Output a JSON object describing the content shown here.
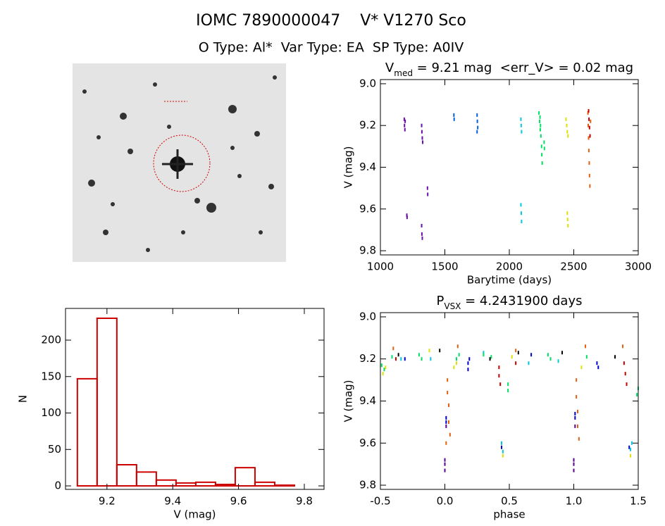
{
  "header": {
    "title": "IOMC 7890000047    V* V1270 Sco",
    "subtitle": "O Type: Al*  Var Type: EA  SP Type: A0IV"
  },
  "chart_data": [
    {
      "type": "scatter",
      "title": [
        "V",
        "med",
        " = 9.21 mag  <err_V> = 0.02 mag"
      ],
      "x_label": "Barytime (days)",
      "y_label": "V (mag)",
      "xlim": [
        1000,
        3000
      ],
      "xticks": [
        1000,
        1500,
        2000,
        2500,
        3000
      ],
      "ylim": [
        9.82,
        8.98
      ],
      "yticks": [
        {
          "value": 9,
          "label": "9.0"
        },
        9.2,
        9.4,
        9.6,
        9.8
      ],
      "series": [
        {
          "color": "#6a0dad",
          "x": [
            1185,
            1187,
            1190,
            1192,
            1205,
            1207,
            1320,
            1322,
            1325,
            1328,
            1320,
            1322,
            1325,
            1365,
            1367
          ],
          "values": [
            9.17,
            9.2,
            9.22,
            9.18,
            9.63,
            9.64,
            9.2,
            9.23,
            9.26,
            9.28,
            9.68,
            9.72,
            9.74,
            9.5,
            9.53
          ]
        },
        {
          "color": "#0060e0",
          "x": [
            1570,
            1572,
            1750,
            1752,
            1755,
            1750
          ],
          "values": [
            9.15,
            9.17,
            9.15,
            9.18,
            9.21,
            9.23
          ]
        },
        {
          "color": "#00c8e0",
          "x": [
            2090,
            2092,
            2095,
            2090,
            2093,
            2095
          ],
          "values": [
            9.17,
            9.2,
            9.23,
            9.58,
            9.62,
            9.66
          ]
        },
        {
          "color": "#00e060",
          "x": [
            2230,
            2235,
            2240,
            2245,
            2250,
            2252,
            2255,
            2270,
            2272,
            2238,
            2242
          ],
          "values": [
            9.14,
            9.18,
            9.22,
            9.25,
            9.3,
            9.34,
            9.38,
            9.28,
            9.31,
            9.16,
            9.2
          ]
        },
        {
          "color": "#e0e000",
          "x": [
            2440,
            2445,
            2450,
            2455,
            2450,
            2452,
            2455
          ],
          "values": [
            9.17,
            9.2,
            9.23,
            9.25,
            9.62,
            9.65,
            9.68
          ]
        },
        {
          "color": "#e06010",
          "x": [
            2610,
            2612,
            2615,
            2617,
            2620,
            2622,
            2625,
            2630
          ],
          "values": [
            9.14,
            9.2,
            9.26,
            9.32,
            9.38,
            9.44,
            9.49,
            9.18
          ]
        },
        {
          "color": "#c80000",
          "x": [
            2615,
            2618,
            2622,
            2626
          ],
          "values": [
            9.13,
            9.17,
            9.21,
            9.25
          ]
        }
      ]
    },
    {
      "type": "histogram",
      "x_label": "V (mag)",
      "y_label": "N",
      "color": "#cc0000",
      "xlim": [
        9.074,
        9.86
      ],
      "xticks": [
        9.2,
        9.4,
        9.6,
        9.8
      ],
      "ylim": [
        -4.8,
        243.5
      ],
      "yticks": [
        0,
        50,
        100,
        150,
        200
      ],
      "bins": [
        9.11,
        9.17,
        9.23,
        9.29,
        9.35,
        9.41,
        9.47,
        9.53,
        9.59,
        9.65,
        9.71,
        9.77
      ],
      "values": [
        147,
        230,
        29,
        19,
        8,
        4,
        5,
        2,
        25,
        5,
        1
      ]
    },
    {
      "type": "scatter",
      "title": [
        "P",
        "VSX",
        " = 4.2431900 days"
      ],
      "x_label": "phase",
      "y_label": "V (mag)",
      "xlim": [
        -0.5,
        1.5
      ],
      "xticks": [
        -0.5,
        {
          "value": 0,
          "label": "0.0"
        },
        0.5,
        {
          "value": 1,
          "label": "1.0"
        },
        1.5
      ],
      "ylim": [
        9.82,
        8.98
      ],
      "yticks": [
        {
          "value": 9,
          "label": "9.0"
        },
        9.2,
        9.4,
        9.6,
        9.8
      ],
      "series": [
        {
          "color": "#5a0090",
          "x": [
            0,
            0,
            0,
            1,
            1,
            1,
            0.01,
            1.01
          ],
          "values": [
            9.7,
            9.73,
            9.68,
            9.7,
            9.68,
            9.73,
            9.52,
            9.52
          ]
        },
        {
          "color": "#0000cc",
          "x": [
            0.01,
            0.01,
            1.01,
            1.01,
            0.18,
            0.18,
            0.19,
            1.18,
            1.19,
            0.44,
            1.43,
            -0.31,
            0.67
          ],
          "values": [
            9.48,
            9.5,
            9.48,
            9.46,
            9.22,
            9.25,
            9.2,
            9.22,
            9.24,
            9.62,
            9.62,
            9.2,
            9.18
          ]
        },
        {
          "color": "#00c8e0",
          "x": [
            0.44,
            0.45,
            1.44,
            1.45,
            -0.34,
            0.65,
            -0.11,
            0.88,
            0.3
          ],
          "values": [
            9.6,
            9.64,
            9.63,
            9.6,
            9.2,
            9.22,
            9.2,
            9.21,
            9.17
          ]
        },
        {
          "color": "#00e060",
          "x": [
            -0.49,
            -0.47,
            -0.2,
            -0.18,
            0.09,
            0.11,
            0.49,
            0.49,
            0.8,
            0.82,
            1.1,
            1.5,
            1.49,
            0.3,
            0.36,
            -0.41
          ],
          "values": [
            9.23,
            9.25,
            9.18,
            9.2,
            9.2,
            9.18,
            9.32,
            9.35,
            9.18,
            9.2,
            9.19,
            9.34,
            9.37,
            9.18,
            9.19,
            9.19
          ]
        },
        {
          "color": "#e0e000",
          "x": [
            -0.48,
            -0.46,
            0.07,
            0.09,
            0.45,
            1.44,
            1.06,
            0.52,
            -0.12
          ],
          "values": [
            9.27,
            9.24,
            9.24,
            9.22,
            9.66,
            9.66,
            9.24,
            9.19,
            9.16
          ]
        },
        {
          "color": "#e06010",
          "x": [
            0.02,
            0.02,
            0.03,
            0.03,
            0.04,
            0.01,
            1.02,
            1.02,
            1.03,
            1.03,
            1.04,
            0.1,
            1.09,
            0.55,
            1.38,
            -0.4
          ],
          "values": [
            9.3,
            9.36,
            9.42,
            9.5,
            9.56,
            9.6,
            9.3,
            9.38,
            9.45,
            9.52,
            9.58,
            9.14,
            9.14,
            9.16,
            9.14,
            9.15
          ]
        },
        {
          "color": "#c80000",
          "x": [
            0.42,
            0.42,
            0.43,
            1.39,
            1.4,
            1.41,
            0.55,
            -0.38
          ],
          "values": [
            9.24,
            9.28,
            9.32,
            9.22,
            9.27,
            9.32,
            9.22,
            9.2
          ]
        },
        {
          "color": "#000000",
          "x": [
            -0.36,
            -0.04,
            0.35,
            0.57,
            0.91,
            1.32
          ],
          "values": [
            9.18,
            9.16,
            9.2,
            9.17,
            9.17,
            9.19
          ]
        }
      ]
    }
  ]
}
